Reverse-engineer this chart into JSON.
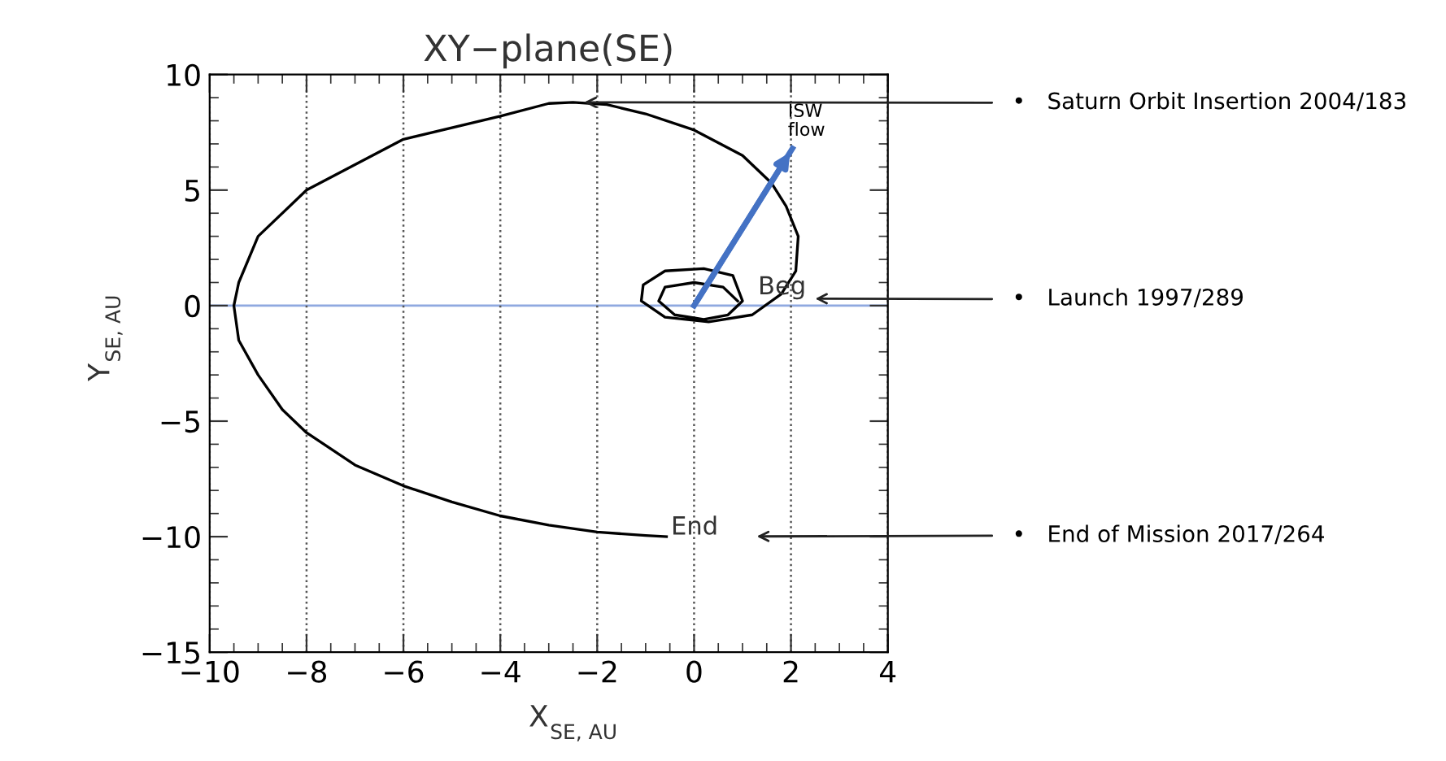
{
  "chart_data": {
    "type": "line",
    "title": "XY−plane(SE)",
    "xlabel": "X$_{SE, AU}$",
    "ylabel": "Y$_{SE, AU}$",
    "xlim": [
      -10,
      4
    ],
    "ylim": [
      -15,
      10
    ],
    "xticks": [
      -10,
      -8,
      -6,
      -4,
      -2,
      0,
      2,
      4
    ],
    "yticks": [
      -15,
      -10,
      -5,
      0,
      5,
      10
    ],
    "grid": "x",
    "marker": "none",
    "line_style": "solid",
    "series": [
      {
        "color": "#000000",
        "x": [
          0.9,
          0.6,
          0.0,
          -0.6,
          -0.73,
          -0.4,
          0.2,
          0.7,
          1.0,
          0.8,
          0.2,
          -0.6,
          -1.05,
          -1.09,
          -0.6,
          0.3,
          1.2,
          1.8,
          2.1,
          2.15,
          1.9,
          1.6,
          1.0,
          0.0,
          -1.0,
          -1.8,
          -2.5,
          -3.0,
          -4.0,
          -6.0,
          -8.0,
          -9.0,
          -9.4,
          -9.5,
          -9.4,
          -9.0,
          -8.5,
          -8.0,
          -7.0,
          -6.0,
          -5.0,
          -4.0,
          -3.0,
          -2.0,
          -1.0,
          -0.57
        ],
        "values": [
          0.2,
          0.8,
          1.0,
          0.8,
          0.2,
          -0.4,
          -0.6,
          -0.4,
          0.2,
          1.3,
          1.6,
          1.5,
          0.9,
          0.2,
          -0.5,
          -0.7,
          -0.4,
          0.5,
          1.5,
          3.0,
          4.3,
          5.3,
          6.5,
          7.6,
          8.3,
          8.7,
          8.8,
          8.75,
          8.2,
          7.2,
          5.0,
          3.0,
          1.0,
          0.0,
          -1.5,
          -3.0,
          -4.5,
          -5.5,
          -6.9,
          -7.8,
          -8.5,
          -9.1,
          -9.5,
          -9.8,
          -9.95,
          -10.0
        ]
      },
      {
        "color": "#4472c4",
        "x": [
          0,
          2.03
        ],
        "values": [
          0,
          6.8
        ]
      }
    ],
    "ref_lines": [
      {
        "axis": "y",
        "value": 0,
        "color": "#8fa9e0",
        "line_style": "solid"
      }
    ],
    "annotations": [
      "ISW flow",
      "Beg",
      "End",
      "•   Saturn Orbit Insertion 2004/183",
      {
        "text": "•   Launch 1997/289",
        "x": 2.5,
        "y": 0.3
      },
      "•   End of Mission 2017/264"
    ]
  }
}
